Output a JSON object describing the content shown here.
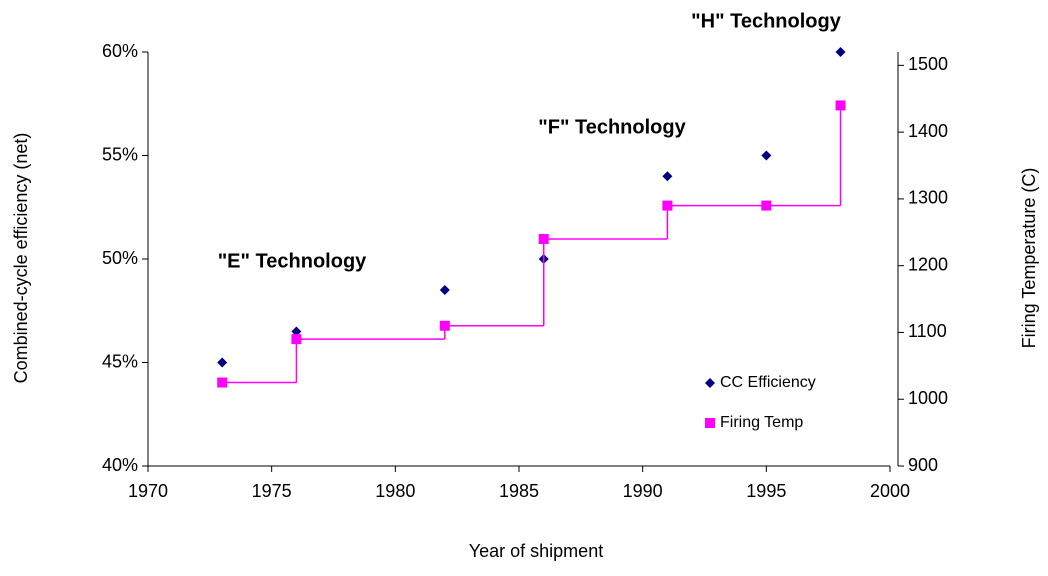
{
  "chart_data": {
    "type": "scatter",
    "x_label": "Year of shipment",
    "y_label": "Combined-cycle efficiency (net)",
    "y2_label": "Firing Temperature (C)",
    "annotations": [
      "\"E\" Technology",
      "\"F\" Technology",
      "\"H\" Technology"
    ],
    "xlim": [
      1970,
      2000
    ],
    "xticks": [
      1970,
      1975,
      1980,
      1985,
      1990,
      1995,
      2000
    ],
    "ylim": [
      40,
      60
    ],
    "yticks": [
      {
        "value": 40,
        "label": "40%"
      },
      {
        "value": 45,
        "label": "45%"
      },
      {
        "value": 50,
        "label": "50%"
      },
      {
        "value": 55,
        "label": "55%"
      },
      {
        "value": 60,
        "label": "60%"
      }
    ],
    "y2lim": [
      900,
      1520
    ],
    "y2ticks": [
      900,
      1000,
      1100,
      1200,
      1300,
      1400,
      1500
    ],
    "legend": "lower right",
    "series": [
      {
        "name": "CC Efficiency",
        "color": "#000080",
        "marker": "diamond",
        "x": [
          1973,
          1976,
          1982,
          1986,
          1991,
          1995,
          1998
        ],
        "values": [
          45,
          46.5,
          48.5,
          50,
          54,
          55,
          60
        ]
      },
      {
        "name": "Firing Temp",
        "color": "#ff00ff",
        "marker": "square",
        "axis": "y2",
        "x": [
          1973,
          1976,
          1982,
          1986,
          1991,
          1995,
          1998
        ],
        "values": [
          1025,
          1090,
          1110,
          1240,
          1290,
          1290,
          1440
        ]
      }
    ]
  }
}
